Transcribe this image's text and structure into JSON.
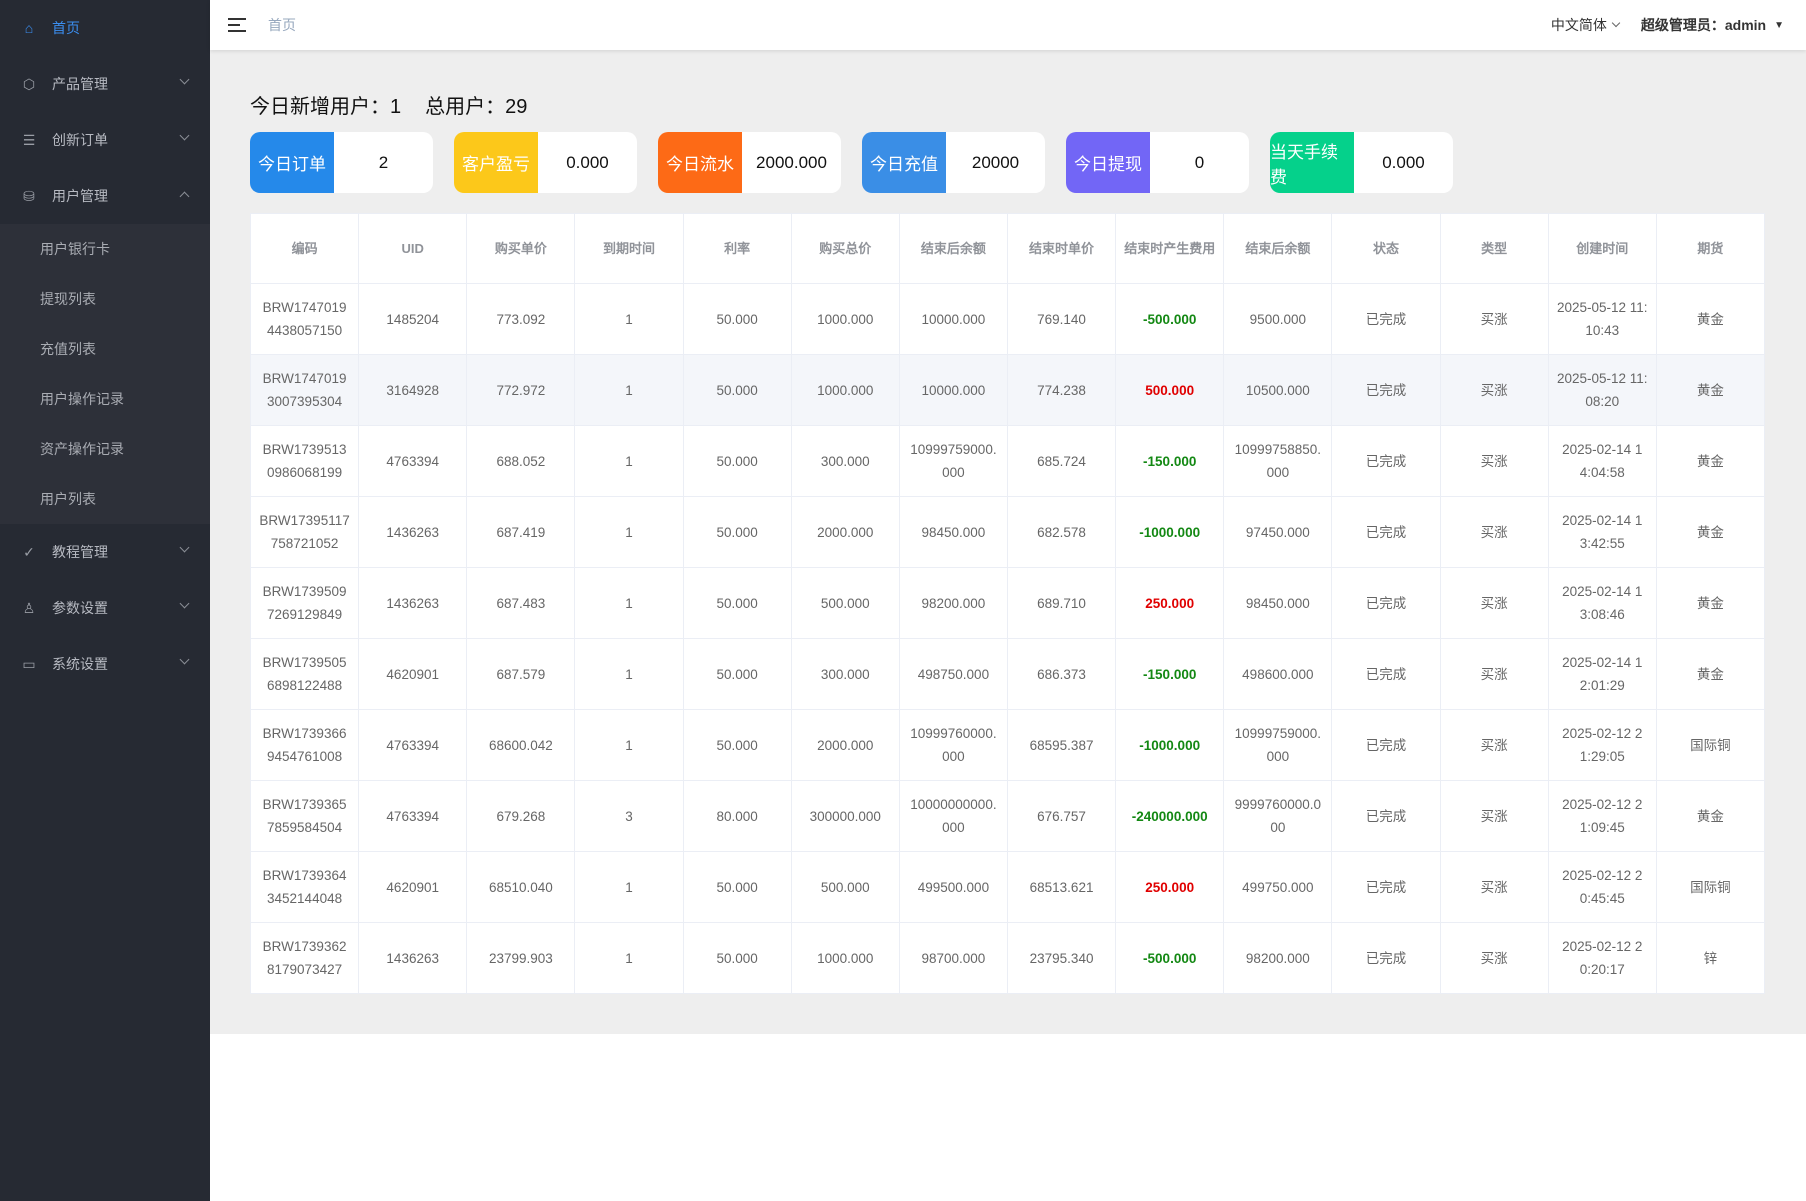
{
  "sidebar": {
    "items": [
      {
        "label": "首页",
        "icon": "home-icon",
        "active": true
      },
      {
        "label": "产品管理",
        "icon": "box-icon"
      },
      {
        "label": "创新订单",
        "icon": "clipboard-icon"
      },
      {
        "label": "用户管理",
        "icon": "user-database-icon",
        "expanded": true,
        "children": [
          "用户银行卡",
          "提现列表",
          "充值列表",
          "用户操作记录",
          "资产操作记录",
          "用户列表"
        ]
      },
      {
        "label": "教程管理",
        "icon": "check-circle-icon"
      },
      {
        "label": "参数设置",
        "icon": "user-settings-icon"
      },
      {
        "label": "系统设置",
        "icon": "book-icon"
      }
    ]
  },
  "header": {
    "breadcrumb": "首页",
    "language": "中文简体",
    "user": "超级管理员：admin"
  },
  "summary": {
    "new_users_label": "今日新增用户：",
    "new_users": "1",
    "total_users_label": "总用户：",
    "total_users": "29"
  },
  "cards": [
    {
      "label": "今日订单",
      "value": "2",
      "color": "#2589ea"
    },
    {
      "label": "客户盈亏",
      "value": "0.000",
      "color": "#fcc81a"
    },
    {
      "label": "今日流水",
      "value": "2000.000",
      "color": "#fd6a16"
    },
    {
      "label": "今日充值",
      "value": "20000",
      "color": "#3a8ee6"
    },
    {
      "label": "今日提现",
      "value": "0",
      "color": "#7266f6"
    },
    {
      "label": "当天手续费",
      "value": "0.000",
      "color": "#05d18b"
    }
  ],
  "table": {
    "columns": [
      "编码",
      "UID",
      "购买单价",
      "到期时间",
      "利率",
      "购买总价",
      "结束后余额",
      "结束时单价",
      "结束时产生费用",
      "结束后余额",
      "状态",
      "类型",
      "创建时间",
      "期货"
    ],
    "rows": [
      [
        "BRW17470194438057150",
        "1485204",
        "773.092",
        "1",
        "50.000",
        "1000.000",
        "10000.000",
        "769.140",
        "-500.000",
        "9500.000",
        "已完成",
        "买涨",
        "2025-05-12 11:10:43",
        "黄金"
      ],
      [
        "BRW17470193007395304",
        "3164928",
        "772.972",
        "1",
        "50.000",
        "1000.000",
        "10000.000",
        "774.238",
        "500.000",
        "10500.000",
        "已完成",
        "买涨",
        "2025-05-12 11:08:20",
        "黄金"
      ],
      [
        "BRW17395130986068199",
        "4763394",
        "688.052",
        "1",
        "50.000",
        "300.000",
        "10999759000.000",
        "685.724",
        "-150.000",
        "10999758850.000",
        "已完成",
        "买涨",
        "2025-02-14 14:04:58",
        "黄金"
      ],
      [
        "BRW17395117758721052",
        "1436263",
        "687.419",
        "1",
        "50.000",
        "2000.000",
        "98450.000",
        "682.578",
        "-1000.000",
        "97450.000",
        "已完成",
        "买涨",
        "2025-02-14 13:42:55",
        "黄金"
      ],
      [
        "BRW17395097269129849",
        "1436263",
        "687.483",
        "1",
        "50.000",
        "500.000",
        "98200.000",
        "689.710",
        "250.000",
        "98450.000",
        "已完成",
        "买涨",
        "2025-02-14 13:08:46",
        "黄金"
      ],
      [
        "BRW17395056898122488",
        "4620901",
        "687.579",
        "1",
        "50.000",
        "300.000",
        "498750.000",
        "686.373",
        "-150.000",
        "498600.000",
        "已完成",
        "买涨",
        "2025-02-14 12:01:29",
        "黄金"
      ],
      [
        "BRW17393669454761008",
        "4763394",
        "68600.042",
        "1",
        "50.000",
        "2000.000",
        "10999760000.000",
        "68595.387",
        "-1000.000",
        "10999759000.000",
        "已完成",
        "买涨",
        "2025-02-12 21:29:05",
        "国际铜"
      ],
      [
        "BRW17393657859584504",
        "4763394",
        "679.268",
        "3",
        "80.000",
        "300000.000",
        "10000000000.000",
        "676.757",
        "-240000.000",
        "9999760000.000",
        "已完成",
        "买涨",
        "2025-02-12 21:09:45",
        "黄金"
      ],
      [
        "BRW17393643452144048",
        "4620901",
        "68510.040",
        "1",
        "50.000",
        "500.000",
        "499500.000",
        "68513.621",
        "250.000",
        "499750.000",
        "已完成",
        "买涨",
        "2025-02-12 20:45:45",
        "国际铜"
      ],
      [
        "BRW17393628179073427",
        "1436263",
        "23799.903",
        "1",
        "50.000",
        "1000.000",
        "98700.000",
        "23795.340",
        "-500.000",
        "98200.000",
        "已完成",
        "买涨",
        "2025-02-12 20:20:17",
        "锌"
      ]
    ]
  },
  "colors": {
    "profit": "#e00000",
    "loss": "#138813",
    "accent": "#3b8ef0",
    "sidebar": "#262a33"
  }
}
